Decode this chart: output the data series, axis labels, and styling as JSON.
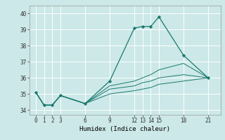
{
  "background_color": "#cce8e8",
  "grid_color": "#ffffff",
  "line_color": "#1a7a6e",
  "xlabel": "Humidex (Indice chaleur)",
  "xticks": [
    0,
    1,
    2,
    3,
    6,
    9,
    12,
    13,
    14,
    15,
    18,
    21
  ],
  "yticks": [
    34,
    35,
    36,
    37,
    38,
    39,
    40
  ],
  "ylim": [
    33.7,
    40.5
  ],
  "xlim": [
    -0.8,
    22.5
  ],
  "lines": [
    {
      "x": [
        0,
        1,
        2,
        3,
        6,
        9,
        12,
        13,
        14,
        15,
        18,
        21
      ],
      "y": [
        35.1,
        34.3,
        34.3,
        34.9,
        34.4,
        35.8,
        39.1,
        39.2,
        39.2,
        39.8,
        37.4,
        36.0
      ],
      "marker": true,
      "linestyle": "-"
    },
    {
      "x": [
        0,
        1,
        2,
        3,
        6,
        9,
        12,
        13,
        14,
        15,
        18,
        21
      ],
      "y": [
        35.1,
        34.3,
        34.3,
        34.9,
        34.4,
        35.5,
        35.8,
        36.0,
        36.2,
        36.5,
        36.9,
        36.0
      ],
      "marker": false,
      "linestyle": "-"
    },
    {
      "x": [
        0,
        1,
        2,
        3,
        6,
        9,
        12,
        13,
        14,
        15,
        18,
        21
      ],
      "y": [
        35.1,
        34.3,
        34.3,
        34.9,
        34.4,
        35.3,
        35.5,
        35.7,
        35.8,
        36.0,
        36.2,
        36.0
      ],
      "marker": false,
      "linestyle": "-"
    },
    {
      "x": [
        0,
        1,
        2,
        3,
        6,
        9,
        12,
        13,
        14,
        15,
        18,
        21
      ],
      "y": [
        35.1,
        34.3,
        34.3,
        34.9,
        34.4,
        35.0,
        35.2,
        35.3,
        35.4,
        35.6,
        35.8,
        36.0
      ],
      "marker": false,
      "linestyle": "-"
    }
  ],
  "tick_fontsize": 5.5,
  "xlabel_fontsize": 6.5
}
